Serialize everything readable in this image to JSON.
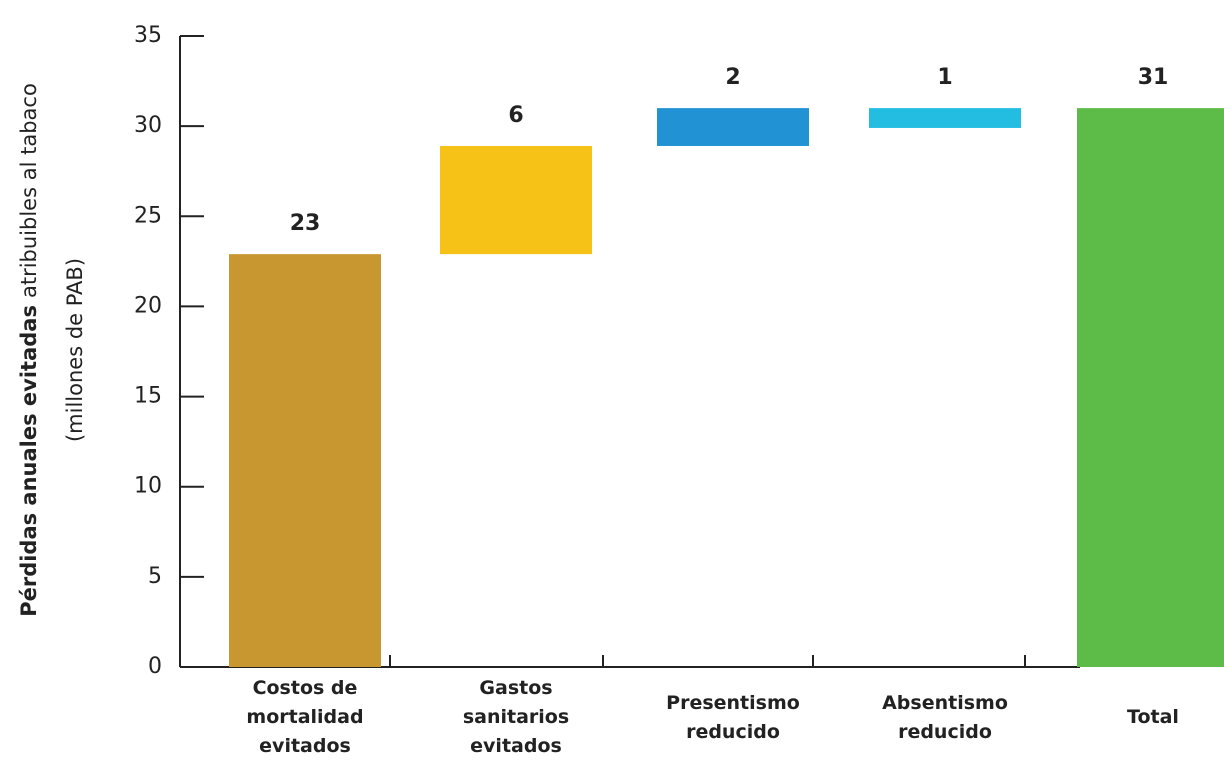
{
  "chart_data": {
    "type": "waterfall",
    "y_label_bold": "Pérdidas anuales evitadas",
    "y_label": "atribuibles al tabaco",
    "y_label_line2": "(millones de PAB)",
    "categories": [
      "Costos de\nmortalidad\nevitados",
      "Gastos\nsanitarios\nevitados",
      "Presentismo\nreducido",
      "Absentismo\nreducido",
      "Total"
    ],
    "values": [
      22.9,
      6,
      2.1,
      1.1,
      31
    ],
    "value_labels": [
      "23",
      "6",
      "2",
      "1",
      "31"
    ],
    "colors": [
      "#c8972f",
      "#f6c218",
      "#2193d5",
      "#24bde2",
      "#5dbb47"
    ],
    "total_index": 4,
    "ylim": [
      0,
      35
    ],
    "yticks": [
      0,
      5,
      10,
      15,
      20,
      25,
      30,
      35
    ]
  }
}
